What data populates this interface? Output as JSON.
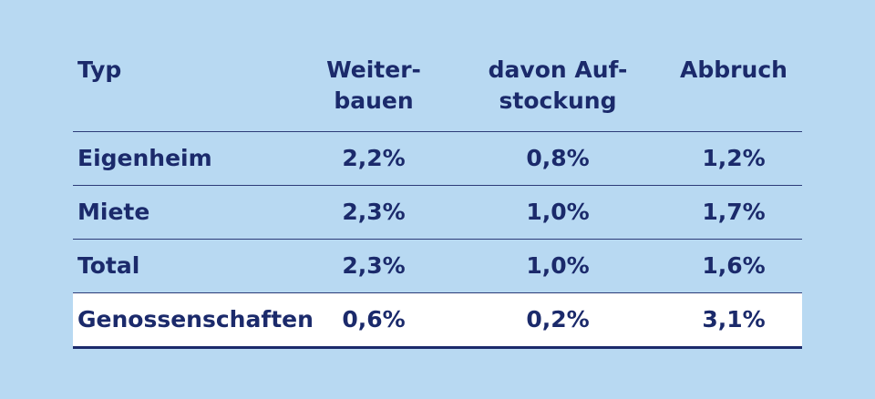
{
  "colors": {
    "background": "#b8d9f2",
    "text": "#1b2a6b",
    "highlight_row": "#ffffff"
  },
  "chart_data": {
    "type": "table",
    "columns": [
      "Typ",
      "Weiter-\nbauen",
      "davon Auf-\nstockung",
      "Abbruch"
    ],
    "rows": [
      [
        "Eigenheim",
        "2,2%",
        "0,8%",
        "1,2%"
      ],
      [
        "Miete",
        "2,3%",
        "1,0%",
        "1,7%"
      ],
      [
        "Total",
        "2,3%",
        "1,0%",
        "1,6%"
      ],
      [
        "Genossenschaften",
        "0,6%",
        "0,2%",
        "3,1%"
      ]
    ],
    "highlighted_row": 3
  }
}
